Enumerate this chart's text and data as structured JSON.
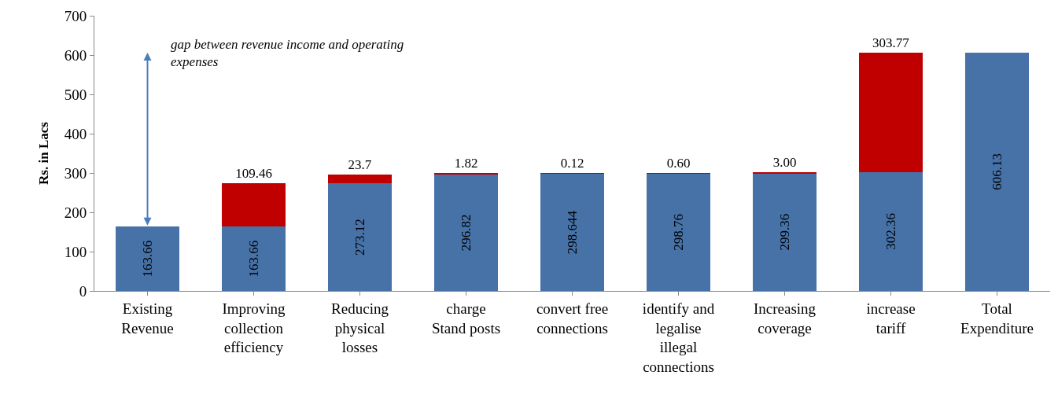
{
  "chart_data": {
    "type": "bar",
    "stacked": true,
    "ylabel": "Rs. in Lacs",
    "categories": [
      "Existing\nRevenue",
      "Improving\ncollection\nefficiency",
      "Reducing\nphysical\nlosses",
      "charge\nStand posts",
      "convert free\nconnections",
      "identify and\nlegalise\nillegal\nconnections",
      "Increasing\ncoverage",
      "increase\ntariff",
      "Total\nExpenditure"
    ],
    "series": [
      {
        "color": "#4672a8",
        "values": [
          163.66,
          163.66,
          273.12,
          296.82,
          298.644,
          298.76,
          299.36,
          302.36,
          606.13
        ],
        "value_labels": [
          "163.66",
          "163.66",
          "273.12",
          "296.82",
          "298.644",
          "298.76",
          "299.36",
          "302.36",
          "606.13"
        ]
      },
      {
        "color": "#c00000",
        "values": [
          null,
          109.46,
          23.7,
          1.82,
          0.12,
          0.6,
          3.0,
          303.77,
          null
        ],
        "value_labels": [
          null,
          "109.46",
          "23.7",
          "1.82",
          "0.12",
          "0.60",
          "3.00",
          "303.77",
          null
        ]
      }
    ],
    "ylim": [
      0,
      700
    ],
    "yticks": [
      0,
      100,
      200,
      300,
      400,
      500,
      600,
      700
    ],
    "annotations": [
      "gap between revenue income and operating\nexpenses"
    ]
  }
}
